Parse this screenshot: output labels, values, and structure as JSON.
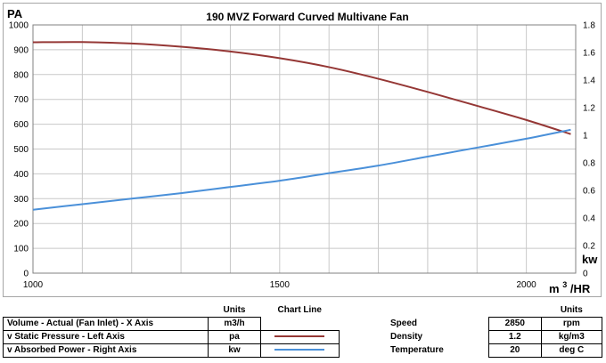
{
  "chart_data": {
    "type": "line",
    "title": "190 MVZ Forward Curved Multivane Fan",
    "left_axis_unit": "PA",
    "right_axis_unit": "kw",
    "x_axis_unit_base": "m",
    "x_axis_unit_exp": "3",
    "x_axis_unit_tail": "/HR",
    "xlim": [
      1000,
      2100
    ],
    "ylim_left": [
      0,
      1000
    ],
    "ylim_right": [
      0,
      1.8
    ],
    "x_ticks": [
      "1000",
      "1500",
      "2000"
    ],
    "x_tick_values": [
      1000,
      1500,
      2000
    ],
    "x_minor_grid_step": 100,
    "y_left_ticks": [
      "0",
      "100",
      "200",
      "300",
      "400",
      "500",
      "600",
      "700",
      "800",
      "900",
      "1000"
    ],
    "y_left_tick_values": [
      0,
      100,
      200,
      300,
      400,
      500,
      600,
      700,
      800,
      900,
      1000
    ],
    "y_right_ticks": [
      "0",
      "0.2",
      "0.4",
      "0.6",
      "0.8",
      "1",
      "1.2",
      "1.4",
      "1.6",
      "1.8"
    ],
    "y_right_tick_values": [
      0,
      0.2,
      0.4,
      0.6,
      0.8,
      1.0,
      1.2,
      1.4,
      1.6,
      1.8
    ],
    "grid": true,
    "series": [
      {
        "name": "Static Pressure",
        "axis": "left",
        "color": "#953735",
        "x": [
          1000,
          1100,
          1200,
          1300,
          1400,
          1500,
          1600,
          1700,
          1800,
          1900,
          2000,
          2090
        ],
        "y": [
          930,
          931,
          925,
          912,
          893,
          866,
          830,
          783,
          730,
          674,
          617,
          560
        ]
      },
      {
        "name": "Absorbed Power",
        "axis": "right",
        "color": "#4a90d9",
        "x": [
          1000,
          1100,
          1200,
          1300,
          1400,
          1500,
          1600,
          1700,
          1800,
          1900,
          2000,
          2090
        ],
        "y": [
          0.46,
          0.5,
          0.54,
          0.58,
          0.625,
          0.67,
          0.725,
          0.78,
          0.845,
          0.91,
          0.975,
          1.04
        ]
      }
    ]
  },
  "legend_table": {
    "header_units": "Units",
    "header_chart_line": "Chart Line",
    "rows": [
      {
        "label": "Volume - Actual (Fan Inlet) - X Axis",
        "unit": "m3/h",
        "line_color": ""
      },
      {
        "label": "v Static Pressure - Left Axis",
        "unit": "pa",
        "line_color": "#953735"
      },
      {
        "label": "v Absorbed Power - Right Axis",
        "unit": "kw",
        "line_color": "#4a90d9"
      }
    ]
  },
  "conditions_table": {
    "header_units": "Units",
    "rows": [
      {
        "label": "Speed",
        "value": "2850",
        "unit": "rpm"
      },
      {
        "label": "Density",
        "value": "1.2",
        "unit": "kg/m3"
      },
      {
        "label": "Temperature",
        "value": "20",
        "unit": "deg C"
      }
    ]
  }
}
